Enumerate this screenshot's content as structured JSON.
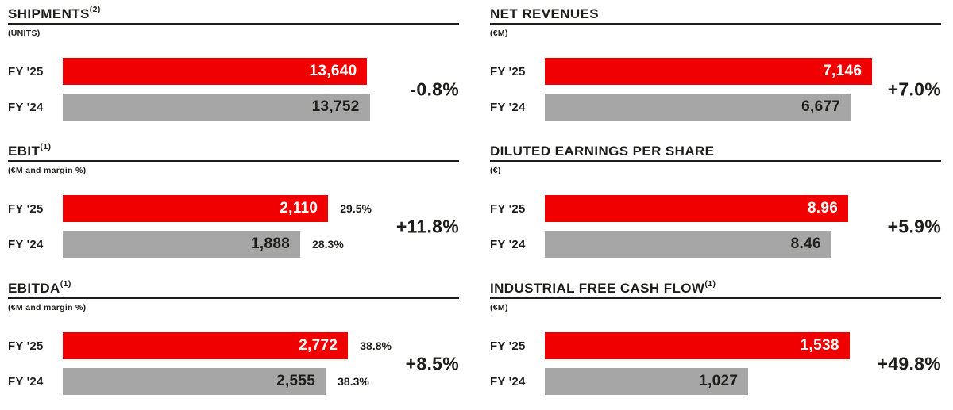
{
  "colors": {
    "fy25_bar": "#f10000",
    "fy24_bar": "#a6a6a6",
    "fy25_value_text": "#ffffff",
    "fy24_value_text": "#1d1d1b",
    "text": "#1d1d1b"
  },
  "chart_data": [
    {
      "type": "bar",
      "title": "SHIPMENTS",
      "footnote_ref": "(2)",
      "subtitle": "(UNITS)",
      "categories": [
        "FY '25",
        "FY '24"
      ],
      "values": [
        13640,
        13752
      ],
      "value_labels": [
        "13,640",
        "13,752"
      ],
      "change": "-0.8%",
      "axis_max": 17750,
      "xlim": [
        0,
        17750
      ],
      "grid": false,
      "legend_position": "none",
      "orientation": "horizontal"
    },
    {
      "type": "bar",
      "title": "NET REVENUES",
      "footnote_ref": "",
      "subtitle": "(€M)",
      "categories": [
        "FY '25",
        "FY '24"
      ],
      "values": [
        7146,
        6677
      ],
      "value_labels": [
        "7,146",
        "6,677"
      ],
      "change": "+7.0%",
      "axis_max": 8650,
      "xlim": [
        0,
        8650
      ],
      "grid": false,
      "legend_position": "none",
      "orientation": "horizontal"
    },
    {
      "type": "bar",
      "title": "EBIT",
      "footnote_ref": "(1)",
      "subtitle": "(€M and margin %)",
      "categories": [
        "FY '25",
        "FY '24"
      ],
      "values": [
        2110,
        1888
      ],
      "value_labels": [
        "2,110",
        "1,888"
      ],
      "margin_labels": [
        "29.5%",
        "28.3%"
      ],
      "change": "+11.8%",
      "axis_max": 3150,
      "xlim": [
        0,
        3150
      ],
      "grid": false,
      "legend_position": "none",
      "orientation": "horizontal"
    },
    {
      "type": "bar",
      "title": "DILUTED EARNINGS PER SHARE",
      "footnote_ref": "",
      "subtitle": "(€)",
      "categories": [
        "FY '25",
        "FY '24"
      ],
      "values": [
        8.96,
        8.46
      ],
      "value_labels": [
        "8.96",
        "8.46"
      ],
      "change": "+5.9%",
      "axis_max": 11.7,
      "xlim": [
        0,
        11.7
      ],
      "grid": false,
      "legend_position": "none",
      "orientation": "horizontal"
    },
    {
      "type": "bar",
      "title": "EBITDA",
      "footnote_ref": "(1)",
      "subtitle": "(€M and margin %)",
      "categories": [
        "FY '25",
        "FY '24"
      ],
      "values": [
        2772,
        2555
      ],
      "value_labels": [
        "2,772",
        "2,555"
      ],
      "margin_labels": [
        "38.8%",
        "38.3%"
      ],
      "change": "+8.5%",
      "axis_max": 3850,
      "xlim": [
        0,
        3850
      ],
      "grid": false,
      "legend_position": "none",
      "orientation": "horizontal"
    },
    {
      "type": "bar",
      "title": "INDUSTRIAL FREE CASH FLOW",
      "footnote_ref": "(1)",
      "subtitle": "(€M)",
      "categories": [
        "FY '25",
        "FY '24"
      ],
      "values": [
        1538,
        1027
      ],
      "value_labels": [
        "1,538",
        "1,027"
      ],
      "change": "+49.8%",
      "axis_max": 2000,
      "xlim": [
        0,
        2000
      ],
      "grid": false,
      "legend_position": "none",
      "orientation": "horizontal"
    }
  ]
}
